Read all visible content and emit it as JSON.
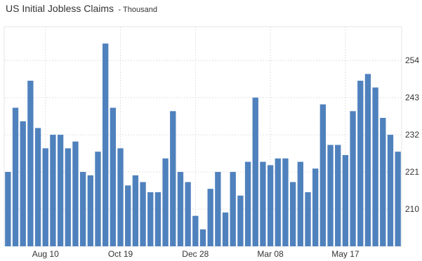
{
  "chart_data": {
    "type": "bar",
    "title": "US Initial Jobless Claims",
    "subtitle": "- Thousand",
    "xlabel": "",
    "ylabel": "",
    "ylim": [
      199,
      264
    ],
    "y_ticks": [
      210,
      221,
      232,
      243,
      254
    ],
    "x_tick_labels": [
      "Aug 10",
      "Oct 19",
      "Dec 28",
      "Mar 08",
      "May 17"
    ],
    "x_tick_indices": [
      5,
      15,
      25,
      35,
      45
    ],
    "bar_color": "#4f81bd",
    "grid": true,
    "values": [
      221,
      240,
      236,
      248,
      234,
      228,
      232,
      232,
      228,
      230,
      221,
      220,
      227,
      259,
      240,
      228,
      217,
      220,
      218,
      215,
      215,
      225,
      239,
      221,
      218,
      208,
      204,
      216,
      221,
      209,
      221,
      214,
      224,
      243,
      224,
      223,
      225,
      225,
      218,
      224,
      215,
      222,
      241,
      229,
      229,
      226,
      239,
      248,
      250,
      246,
      237,
      232,
      227
    ]
  }
}
